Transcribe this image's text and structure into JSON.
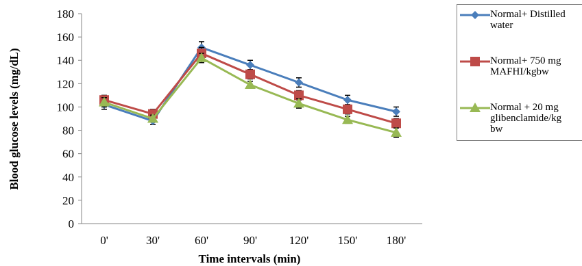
{
  "chart_data": {
    "type": "line",
    "xlabel": "Time intervals (min)",
    "ylabel": "Blood glucose levels (mg/dL)",
    "categories": [
      "0'",
      "30'",
      "60'",
      "90'",
      "120'",
      "150'",
      "180'"
    ],
    "ylim": [
      0,
      180
    ],
    "yticks": [
      0,
      20,
      40,
      60,
      80,
      100,
      120,
      140,
      160,
      180
    ],
    "grid": false,
    "legend_position": "right",
    "series": [
      {
        "name": "Normal+ Distilled water",
        "label_lines": [
          "Normal+ Distilled",
          "water"
        ],
        "marker": "diamond",
        "color": "#4a7ebb",
        "values": [
          102,
          88,
          151,
          136,
          121,
          106,
          96
        ],
        "errors": [
          4,
          3,
          5,
          4,
          4,
          4,
          4
        ]
      },
      {
        "name": "Normal+ 750 mg MAFHI/kgbw",
        "label_lines": [
          "Normal+ 750 mg",
          "MAFHI/kgbw"
        ],
        "marker": "square",
        "color": "#be4b48",
        "values": [
          106,
          94,
          146,
          128,
          110,
          98,
          86
        ],
        "errors": [
          4,
          4,
          5,
          4,
          4,
          4,
          4
        ]
      },
      {
        "name": "Normal + 20 mg glibenclamide/kg bw",
        "label_lines": [
          "Normal + 20 mg",
          "glibenclamide/kg",
          "bw"
        ],
        "marker": "triangle",
        "color": "#98b954",
        "values": [
          104,
          90,
          142,
          119,
          103,
          89,
          78
        ],
        "errors": [
          4,
          3,
          4,
          3,
          4,
          3,
          4
        ]
      }
    ]
  }
}
